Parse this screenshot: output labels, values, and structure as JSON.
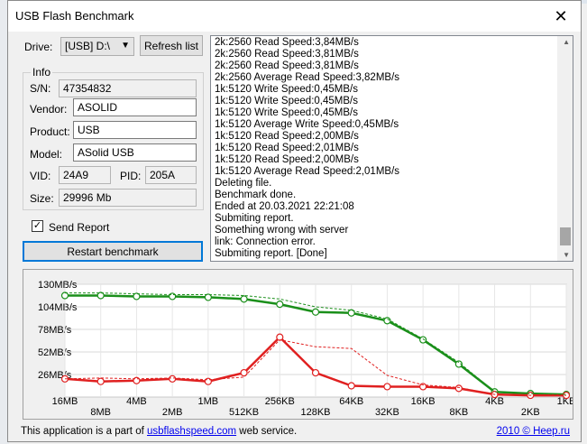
{
  "window": {
    "title": "USB Flash Benchmark",
    "close_glyph": "✕"
  },
  "drive": {
    "label": "Drive:",
    "value": "[USB] D:\\",
    "refresh_label": "Refresh list"
  },
  "info": {
    "title": "Info",
    "sn_label": "S/N:",
    "sn": "47354832",
    "vendor_label": "Vendor:",
    "vendor": "ASOLID",
    "product_label": "Product:",
    "product": "USB",
    "model_label": "Model:",
    "model": "ASolid USB",
    "vid_label": "VID:",
    "vid": "24A9",
    "pid_label": "PID:",
    "pid": "205A",
    "size_label": "Size:",
    "size": "29996 Mb"
  },
  "send_report": {
    "label": "Send Report",
    "checked": true
  },
  "restart_label": "Restart benchmark",
  "log_lines": [
    "2k:2560 Read Speed:3,84MB/s",
    "2k:2560 Read Speed:3,81MB/s",
    "2k:2560 Read Speed:3,81MB/s",
    "2k:2560 Average Read Speed:3,82MB/s",
    "1k:5120 Write Speed:0,45MB/s",
    "1k:5120 Write Speed:0,45MB/s",
    "1k:5120 Write Speed:0,45MB/s",
    "1k:5120 Average Write Speed:0,45MB/s",
    "1k:5120 Read Speed:2,00MB/s",
    "1k:5120 Read Speed:2,01MB/s",
    "1k:5120 Read Speed:2,00MB/s",
    "1k:5120 Average Read Speed:2,01MB/s",
    "Deleting file.",
    "Benchmark done.",
    "Ended at 20.03.2021 22:21:08",
    "Submiting report.",
    "Something wrong with server",
    "link: Connection error.",
    "Submiting report. [Done]"
  ],
  "chart_data": {
    "type": "line",
    "y_ticks": [
      "130MB/s",
      "104MB/s",
      "78MB/s",
      "52MB/s",
      "26MB/s"
    ],
    "ylim": [
      0,
      130
    ],
    "x_labels": [
      "16MB",
      "8MB",
      "4MB",
      "2MB",
      "1MB",
      "512KB",
      "256KB",
      "128KB",
      "64KB",
      "32KB",
      "16KB",
      "8KB",
      "4KB",
      "2KB",
      "1KB"
    ],
    "series": [
      {
        "color": "#1a8f1a",
        "values": [
          117,
          117,
          116,
          116,
          115,
          113,
          107,
          98,
          97,
          88,
          66,
          38,
          6,
          4,
          3
        ],
        "marker": true
      },
      {
        "color": "#e02020",
        "values": [
          21,
          18,
          19,
          21,
          18,
          28,
          69,
          28,
          13,
          12,
          12,
          10,
          3,
          2,
          2
        ],
        "marker": true
      },
      {
        "color": "#1a8f1a",
        "dashed": true,
        "values": [
          120,
          120,
          119,
          118,
          118,
          117,
          113,
          104,
          100,
          90,
          67,
          40,
          6,
          4,
          3
        ],
        "marker": false
      },
      {
        "color": "#e02020",
        "dashed": true,
        "values": [
          21,
          22,
          21,
          22,
          20,
          23,
          66,
          58,
          56,
          25,
          14,
          11,
          3,
          2,
          2
        ],
        "marker": false
      }
    ]
  },
  "footer": {
    "prefix": "This application is a part of ",
    "link": "usbflashspeed.com",
    "suffix": " web service.",
    "copyright_link": "2010 © Heep.ru"
  }
}
